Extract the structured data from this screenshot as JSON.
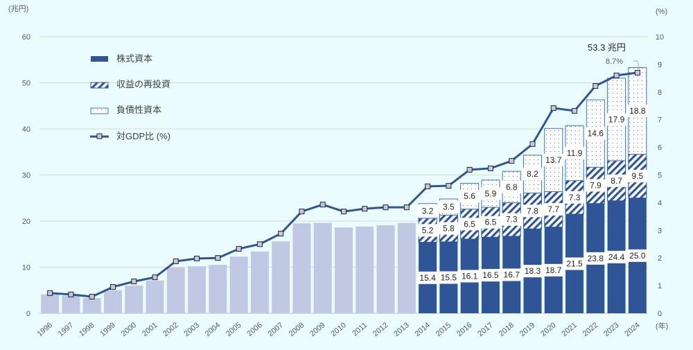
{
  "chart_data": {
    "type": "bar",
    "ylabel_left": "(兆円)",
    "ylabel_right": "(%)",
    "xlabel": "(年)",
    "ylim_left": [
      0,
      60
    ],
    "ylim_right": [
      0,
      10
    ],
    "yticks_left": [
      "0",
      "10",
      "20",
      "30",
      "40",
      "50",
      "60"
    ],
    "yticks_right": [
      "0",
      "1",
      "2",
      "3",
      "4",
      "5",
      "6",
      "7",
      "8",
      "9",
      "10"
    ],
    "grid": true,
    "legend_position": "top-left",
    "legend": [
      "株式資本",
      "収益の再投資",
      "負債性資本",
      "対GDP比 (%)"
    ],
    "categories": [
      "1996",
      "1997",
      "1998",
      "1999",
      "2000",
      "2001",
      "2002",
      "2003",
      "2004",
      "2005",
      "2006",
      "2007",
      "2008",
      "2009",
      "2010",
      "2011",
      "2012",
      "2013",
      "2014",
      "2015",
      "2016",
      "2017",
      "2018",
      "2019",
      "2020",
      "2021",
      "2022",
      "2023",
      "2024"
    ],
    "total_only": [
      4.1,
      3.8,
      3.3,
      5.0,
      6.0,
      7.1,
      9.9,
      10.2,
      10.5,
      12.3,
      13.4,
      15.6,
      19.5,
      19.6,
      18.6,
      18.8,
      19.1,
      19.6,
      null,
      null,
      null,
      null,
      null,
      null,
      null,
      null,
      null,
      null,
      null
    ],
    "series": [
      {
        "name": "株式資本",
        "values": [
          null,
          null,
          null,
          null,
          null,
          null,
          null,
          null,
          null,
          null,
          null,
          null,
          null,
          null,
          null,
          null,
          null,
          null,
          15.4,
          15.5,
          16.1,
          16.5,
          16.7,
          18.3,
          18.7,
          21.5,
          23.8,
          24.4,
          25.0
        ]
      },
      {
        "name": "収益の再投資",
        "values": [
          null,
          null,
          null,
          null,
          null,
          null,
          null,
          null,
          null,
          null,
          null,
          null,
          null,
          null,
          null,
          null,
          null,
          null,
          5.2,
          5.8,
          6.5,
          6.5,
          7.3,
          7.8,
          7.7,
          7.3,
          7.9,
          8.7,
          9.5
        ]
      },
      {
        "name": "負債性資本",
        "values": [
          null,
          null,
          null,
          null,
          null,
          null,
          null,
          null,
          null,
          null,
          null,
          null,
          null,
          null,
          null,
          null,
          null,
          null,
          3.2,
          3.5,
          5.6,
          5.9,
          6.8,
          8.2,
          13.7,
          11.9,
          14.6,
          17.9,
          18.8
        ]
      },
      {
        "name": "対GDP比 (%)",
        "axis": "right",
        "values": [
          0.73,
          0.68,
          0.6,
          0.95,
          1.15,
          1.3,
          1.88,
          1.98,
          2.0,
          2.33,
          2.5,
          2.88,
          3.68,
          3.93,
          3.68,
          3.78,
          3.83,
          3.83,
          4.59,
          4.61,
          5.19,
          5.24,
          5.51,
          6.12,
          7.42,
          7.32,
          8.22,
          8.6,
          8.7
        ]
      }
    ],
    "annotations": {
      "total_2024": "53.3 兆円",
      "ratio_2024": "8.7%"
    },
    "colors": {
      "equity": "#2f5597",
      "reinvest": "#2f5597",
      "debt": "#4472c4",
      "total_only": "#c0c8e3",
      "line": "#2f5597",
      "marker": "#c0c8e3",
      "grid": "#d9d9d9"
    }
  }
}
